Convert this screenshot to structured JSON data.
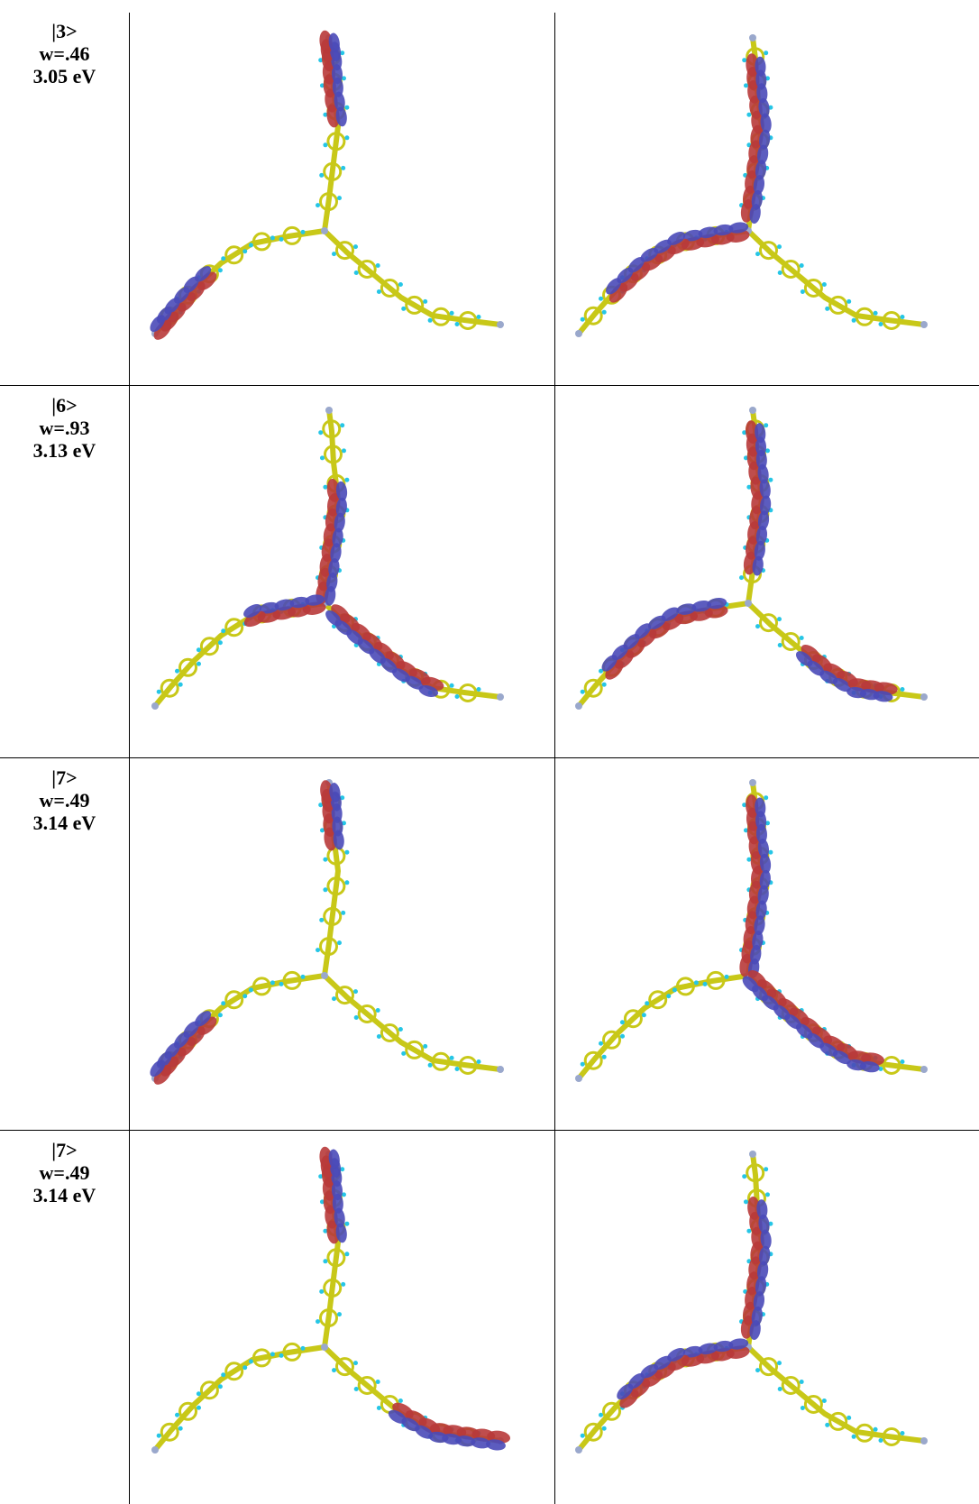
{
  "rows": [
    {
      "state": "|3>",
      "weight": "w=.46",
      "energy": "3.05 eV"
    },
    {
      "state": "|6>",
      "weight": "w=.93",
      "energy": "3.13 eV"
    },
    {
      "state": "|7>",
      "weight": "w=.49",
      "energy": "3.14 eV"
    },
    {
      "state": "|7>",
      "weight": "w=.49",
      "energy": "3.14 eV"
    }
  ],
  "colors": {
    "bond": "#c8c818",
    "hydrogen": "#26c6e6",
    "nitrogen": "#9aa8cc",
    "lobe_red": "#b83a3a",
    "lobe_blue": "#4a4ab8",
    "grid_line": "#000000"
  },
  "icons": [
    "molecule-orbital-image"
  ]
}
